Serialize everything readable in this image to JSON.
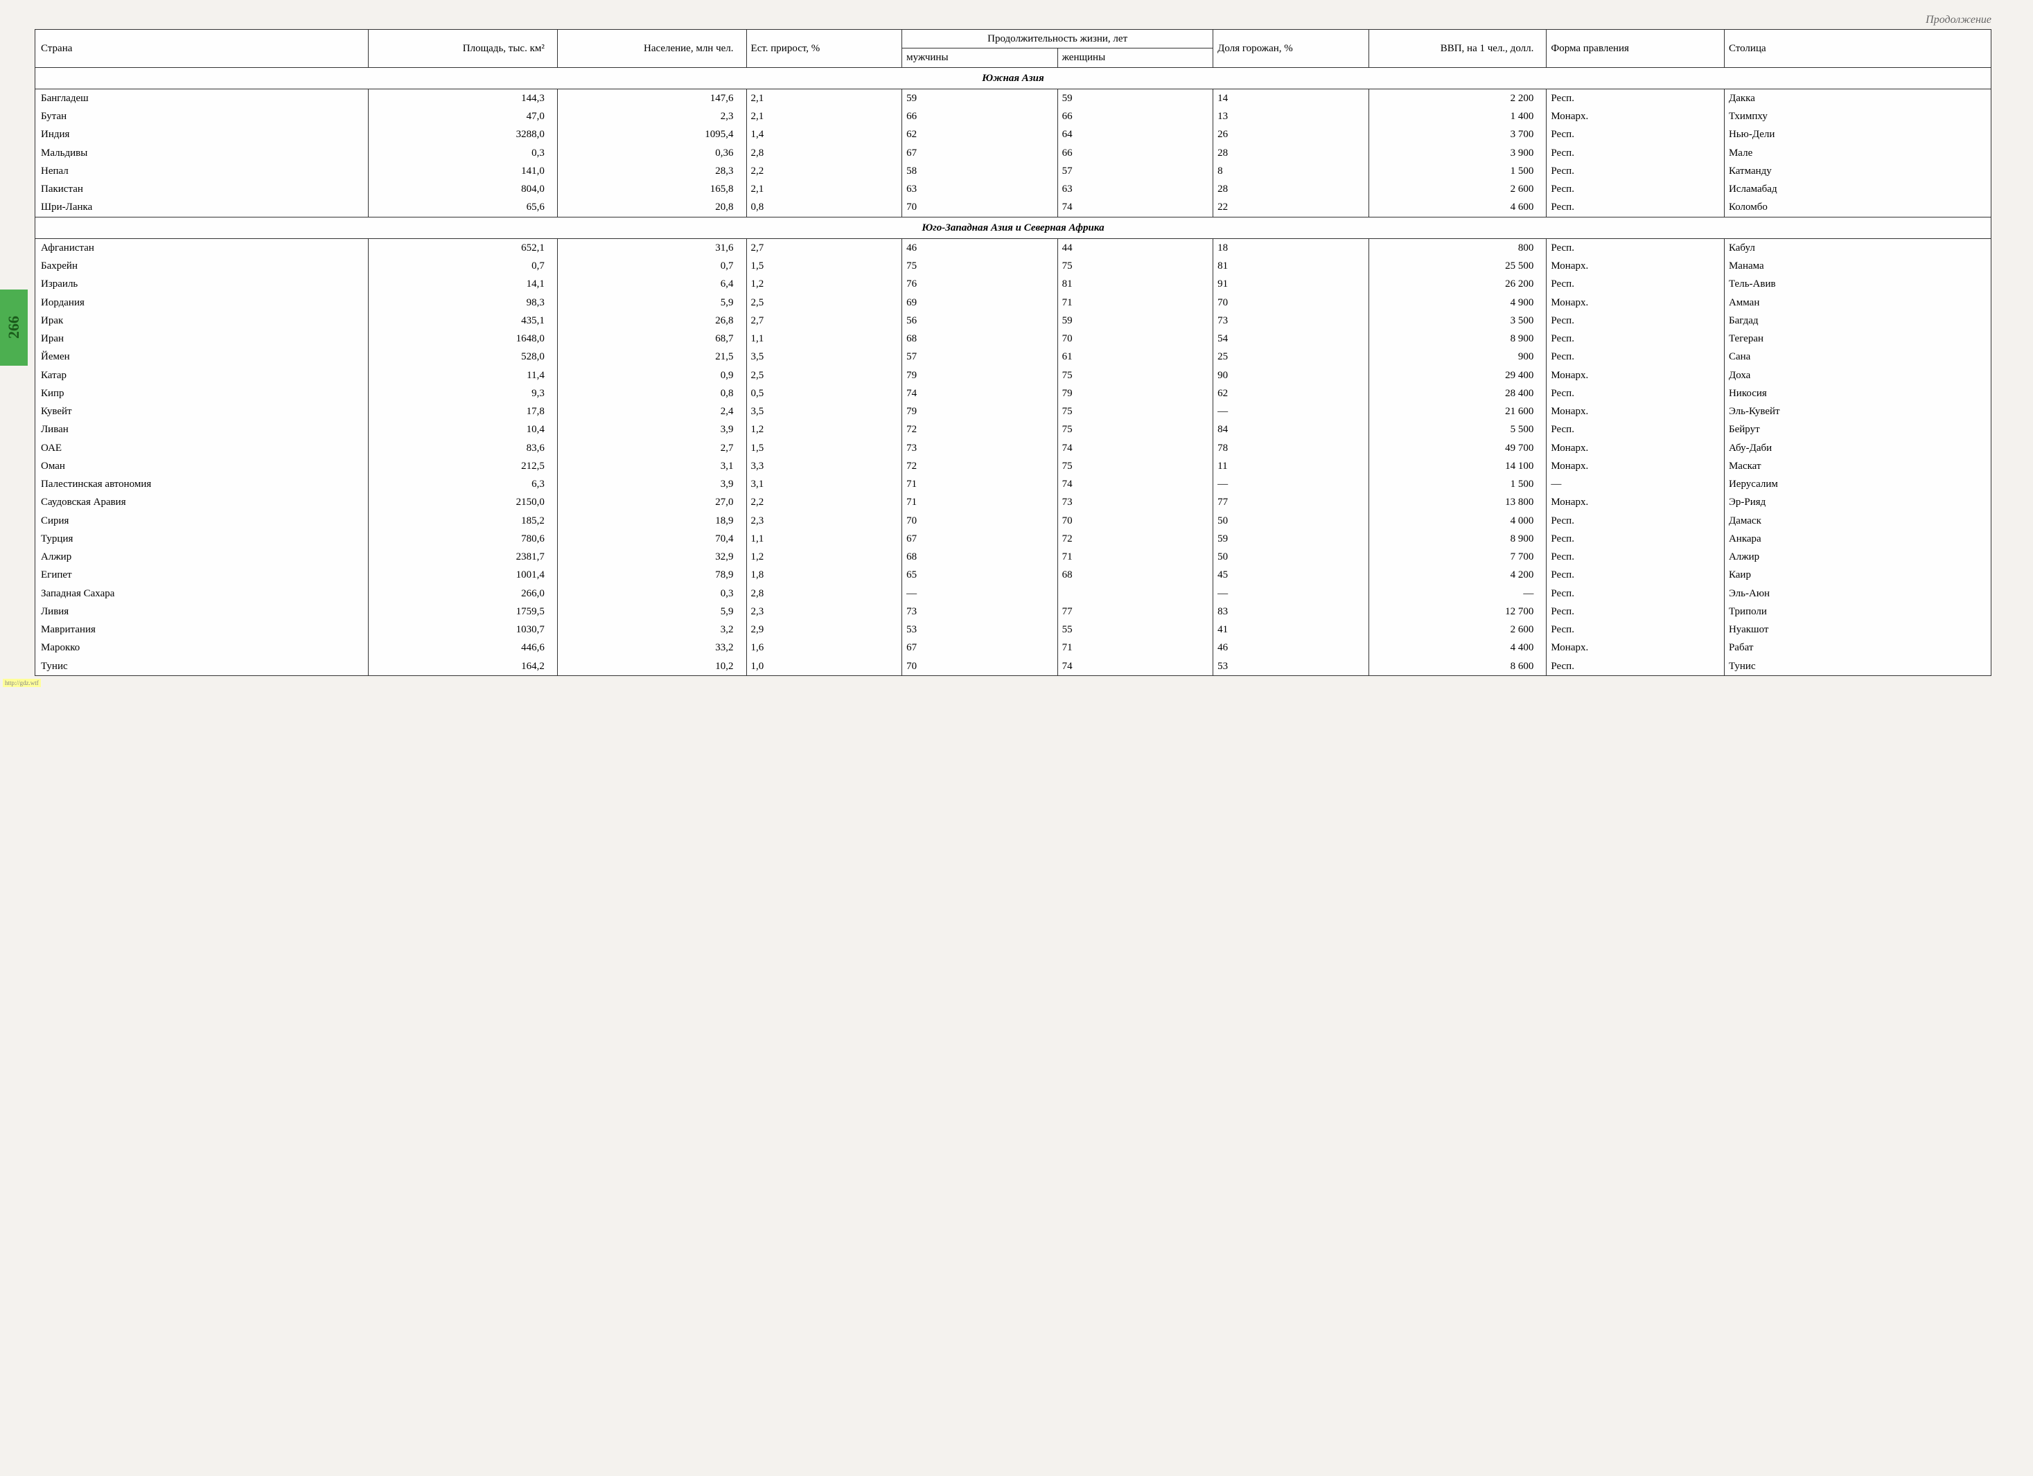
{
  "page_number": "266",
  "continuation": "Продолжение",
  "footer_url": "http://gdz.wtf",
  "headers": {
    "country": "Страна",
    "area": "Площадь, тыс. км²",
    "population": "Население, млн чел.",
    "growth": "Ест. при­рост, %",
    "life_expectancy": "Продолжительность жизни, лет",
    "male": "мужчины",
    "female": "женщины",
    "urban": "Доля горожан, %",
    "gdp": "ВВП, на 1 чел., долл.",
    "government": "Форма правления",
    "capital": "Столица"
  },
  "sections": [
    {
      "title": "Южная Азия",
      "rows": [
        {
          "country": "Бангладеш",
          "area": "144,3",
          "pop": "147,6",
          "growth": "2,1",
          "male": "59",
          "female": "59",
          "urban": "14",
          "gdp": "2 200",
          "gov": "Респ.",
          "capital": "Дакка"
        },
        {
          "country": "Бутан",
          "area": "47,0",
          "pop": "2,3",
          "growth": "2,1",
          "male": "66",
          "female": "66",
          "urban": "13",
          "gdp": "1 400",
          "gov": "Монарх.",
          "capital": "Тхимпху"
        },
        {
          "country": "Индия",
          "area": "3288,0",
          "pop": "1095,4",
          "growth": "1,4",
          "male": "62",
          "female": "64",
          "urban": "26",
          "gdp": "3 700",
          "gov": "Респ.",
          "capital": "Нью-Дели"
        },
        {
          "country": "Мальдивы",
          "area": "0,3",
          "pop": "0,36",
          "growth": "2,8",
          "male": "67",
          "female": "66",
          "urban": "28",
          "gdp": "3 900",
          "gov": "Респ.",
          "capital": "Мале"
        },
        {
          "country": "Непал",
          "area": "141,0",
          "pop": "28,3",
          "growth": "2,2",
          "male": "58",
          "female": "57",
          "urban": "8",
          "gdp": "1 500",
          "gov": "Респ.",
          "capital": "Катманду"
        },
        {
          "country": "Пакистан",
          "area": "804,0",
          "pop": "165,8",
          "growth": "2,1",
          "male": "63",
          "female": "63",
          "urban": "28",
          "gdp": "2 600",
          "gov": "Респ.",
          "capital": "Исламабад"
        },
        {
          "country": "Шри-Ланка",
          "area": "65,6",
          "pop": "20,8",
          "growth": "0,8",
          "male": "70",
          "female": "74",
          "urban": "22",
          "gdp": "4 600",
          "gov": "Респ.",
          "capital": "Коломбо"
        }
      ]
    },
    {
      "title": "Юго-Западная Азия и Северная Африка",
      "rows": [
        {
          "country": "Афганистан",
          "area": "652,1",
          "pop": "31,6",
          "growth": "2,7",
          "male": "46",
          "female": "44",
          "urban": "18",
          "gdp": "800",
          "gov": "Респ.",
          "capital": "Кабул"
        },
        {
          "country": "Бахрейн",
          "area": "0,7",
          "pop": "0,7",
          "growth": "1,5",
          "male": "75",
          "female": "75",
          "urban": "81",
          "gdp": "25 500",
          "gov": "Монарх.",
          "capital": "Манама"
        },
        {
          "country": "Израиль",
          "area": "14,1",
          "pop": "6,4",
          "growth": "1,2",
          "male": "76",
          "female": "81",
          "urban": "91",
          "gdp": "26 200",
          "gov": "Респ.",
          "capital": "Тель-Авив"
        },
        {
          "country": "Иордания",
          "area": "98,3",
          "pop": "5,9",
          "growth": "2,5",
          "male": "69",
          "female": "71",
          "urban": "70",
          "gdp": "4 900",
          "gov": "Монарх.",
          "capital": "Амман"
        },
        {
          "country": "Ирак",
          "area": "435,1",
          "pop": "26,8",
          "growth": "2,7",
          "male": "56",
          "female": "59",
          "urban": "73",
          "gdp": "3 500",
          "gov": "Респ.",
          "capital": "Багдад"
        },
        {
          "country": "Иран",
          "area": "1648,0",
          "pop": "68,7",
          "growth": "1,1",
          "male": "68",
          "female": "70",
          "urban": "54",
          "gdp": "8 900",
          "gov": "Респ.",
          "capital": "Тегеран"
        },
        {
          "country": "Йемен",
          "area": "528,0",
          "pop": "21,5",
          "growth": "3,5",
          "male": "57",
          "female": "61",
          "urban": "25",
          "gdp": "900",
          "gov": "Респ.",
          "capital": "Сана"
        },
        {
          "country": "Катар",
          "area": "11,4",
          "pop": "0,9",
          "growth": "2,5",
          "male": "79",
          "female": "75",
          "urban": "90",
          "gdp": "29 400",
          "gov": "Монарх.",
          "capital": "Доха"
        },
        {
          "country": "Кипр",
          "area": "9,3",
          "pop": "0,8",
          "growth": "0,5",
          "male": "74",
          "female": "79",
          "urban": "62",
          "gdp": "28 400",
          "gov": "Респ.",
          "capital": "Никосия"
        },
        {
          "country": "Кувейт",
          "area": "17,8",
          "pop": "2,4",
          "growth": "3,5",
          "male": "79",
          "female": "75",
          "urban": "—",
          "gdp": "21 600",
          "gov": "Монарх.",
          "capital": "Эль-Кувейт"
        },
        {
          "country": "Ливан",
          "area": "10,4",
          "pop": "3,9",
          "growth": "1,2",
          "male": "72",
          "female": "75",
          "urban": "84",
          "gdp": "5 500",
          "gov": "Респ.",
          "capital": "Бейрут"
        },
        {
          "country": "ОАЕ",
          "area": "83,6",
          "pop": "2,7",
          "growth": "1,5",
          "male": "73",
          "female": "74",
          "urban": "78",
          "gdp": "49 700",
          "gov": "Монарх.",
          "capital": "Абу-Даби"
        },
        {
          "country": "Оман",
          "area": "212,5",
          "pop": "3,1",
          "growth": "3,3",
          "male": "72",
          "female": "75",
          "urban": "11",
          "gdp": "14 100",
          "gov": "Монарх.",
          "capital": "Маскат"
        },
        {
          "country": "Палестинская автономия",
          "area": "6,3",
          "pop": "3,9",
          "growth": "3,1",
          "male": "71",
          "female": "74",
          "urban": "—",
          "gdp": "1 500",
          "gov": "—",
          "capital": "Иерусалим"
        },
        {
          "country": "Саудовская Аравия",
          "area": "2150,0",
          "pop": "27,0",
          "growth": "2,2",
          "male": "71",
          "female": "73",
          "urban": "77",
          "gdp": "13 800",
          "gov": "Монарх.",
          "capital": "Эр-Рияд"
        },
        {
          "country": "Сирия",
          "area": "185,2",
          "pop": "18,9",
          "growth": "2,3",
          "male": "70",
          "female": "70",
          "urban": "50",
          "gdp": "4 000",
          "gov": "Респ.",
          "capital": "Дамаск"
        },
        {
          "country": "Турция",
          "area": "780,6",
          "pop": "70,4",
          "growth": "1,1",
          "male": "67",
          "female": "72",
          "urban": "59",
          "gdp": "8 900",
          "gov": "Респ.",
          "capital": "Анкара"
        },
        {
          "country": "Алжир",
          "area": "2381,7",
          "pop": "32,9",
          "growth": "1,2",
          "male": "68",
          "female": "71",
          "urban": "50",
          "gdp": "7 700",
          "gov": "Респ.",
          "capital": "Алжир"
        },
        {
          "country": "Египет",
          "area": "1001,4",
          "pop": "78,9",
          "growth": "1,8",
          "male": "65",
          "female": "68",
          "urban": "45",
          "gdp": "4 200",
          "gov": "Респ.",
          "capital": "Каир"
        },
        {
          "country": "Западная Сахара",
          "area": "266,0",
          "pop": "0,3",
          "growth": "2,8",
          "male": "—",
          "female": "",
          "urban": "—",
          "gdp": "—",
          "gov": "Респ.",
          "capital": "Эль-Аюн"
        },
        {
          "country": "Ливия",
          "area": "1759,5",
          "pop": "5,9",
          "growth": "2,3",
          "male": "73",
          "female": "77",
          "urban": "83",
          "gdp": "12 700",
          "gov": "Респ.",
          "capital": "Триполи"
        },
        {
          "country": "Мавритания",
          "area": "1030,7",
          "pop": "3,2",
          "growth": "2,9",
          "male": "53",
          "female": "55",
          "urban": "41",
          "gdp": "2 600",
          "gov": "Респ.",
          "capital": "Нуакшот"
        },
        {
          "country": "Марокко",
          "area": "446,6",
          "pop": "33,2",
          "growth": "1,6",
          "male": "67",
          "female": "71",
          "urban": "46",
          "gdp": "4 400",
          "gov": "Монарх.",
          "capital": "Рабат"
        },
        {
          "country": "Тунис",
          "area": "164,2",
          "pop": "10,2",
          "growth": "1,0",
          "male": "70",
          "female": "74",
          "urban": "53",
          "gdp": "8 600",
          "gov": "Респ.",
          "capital": "Тунис"
        }
      ]
    }
  ]
}
